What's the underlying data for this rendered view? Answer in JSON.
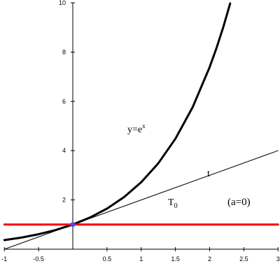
{
  "chart_data": {
    "type": "line",
    "xlim": [
      -1,
      3
    ],
    "ylim": [
      0,
      10
    ],
    "grid": false,
    "x_ticks": [
      "-1",
      "-0.5",
      "0.5",
      "1",
      "1.5",
      "2",
      "2.5",
      "3"
    ],
    "y_ticks": [
      "2",
      "4",
      "6",
      "8",
      "10"
    ],
    "series": [
      {
        "color": "#000000",
        "style": "thick",
        "x": [
          -1,
          -0.75,
          -0.5,
          -0.25,
          0,
          0.25,
          0.5,
          0.75,
          1,
          1.25,
          1.5,
          1.75,
          2,
          2.1,
          2.2,
          2.3
        ],
        "y": [
          0.368,
          0.472,
          0.607,
          0.779,
          1.0,
          1.284,
          1.649,
          2.117,
          2.718,
          3.49,
          4.482,
          5.755,
          7.389,
          8.166,
          9.025,
          9.974
        ]
      },
      {
        "color": "#000000",
        "style": "thin",
        "x": [
          -1,
          3
        ],
        "y": [
          0,
          4
        ]
      },
      {
        "color": "#ff0000",
        "style": "thick",
        "x": [
          -1,
          3
        ],
        "y": [
          1,
          1
        ]
      }
    ],
    "point": {
      "x": 0,
      "y": 1,
      "color": "#4a4aff"
    },
    "annotations": {
      "curve_label_base": "y=e",
      "curve_label_sup": "x",
      "tangent_mark": "t",
      "tangent_label_base": "T",
      "tangent_label_sub": "0",
      "param_label": "(a=0)"
    }
  }
}
